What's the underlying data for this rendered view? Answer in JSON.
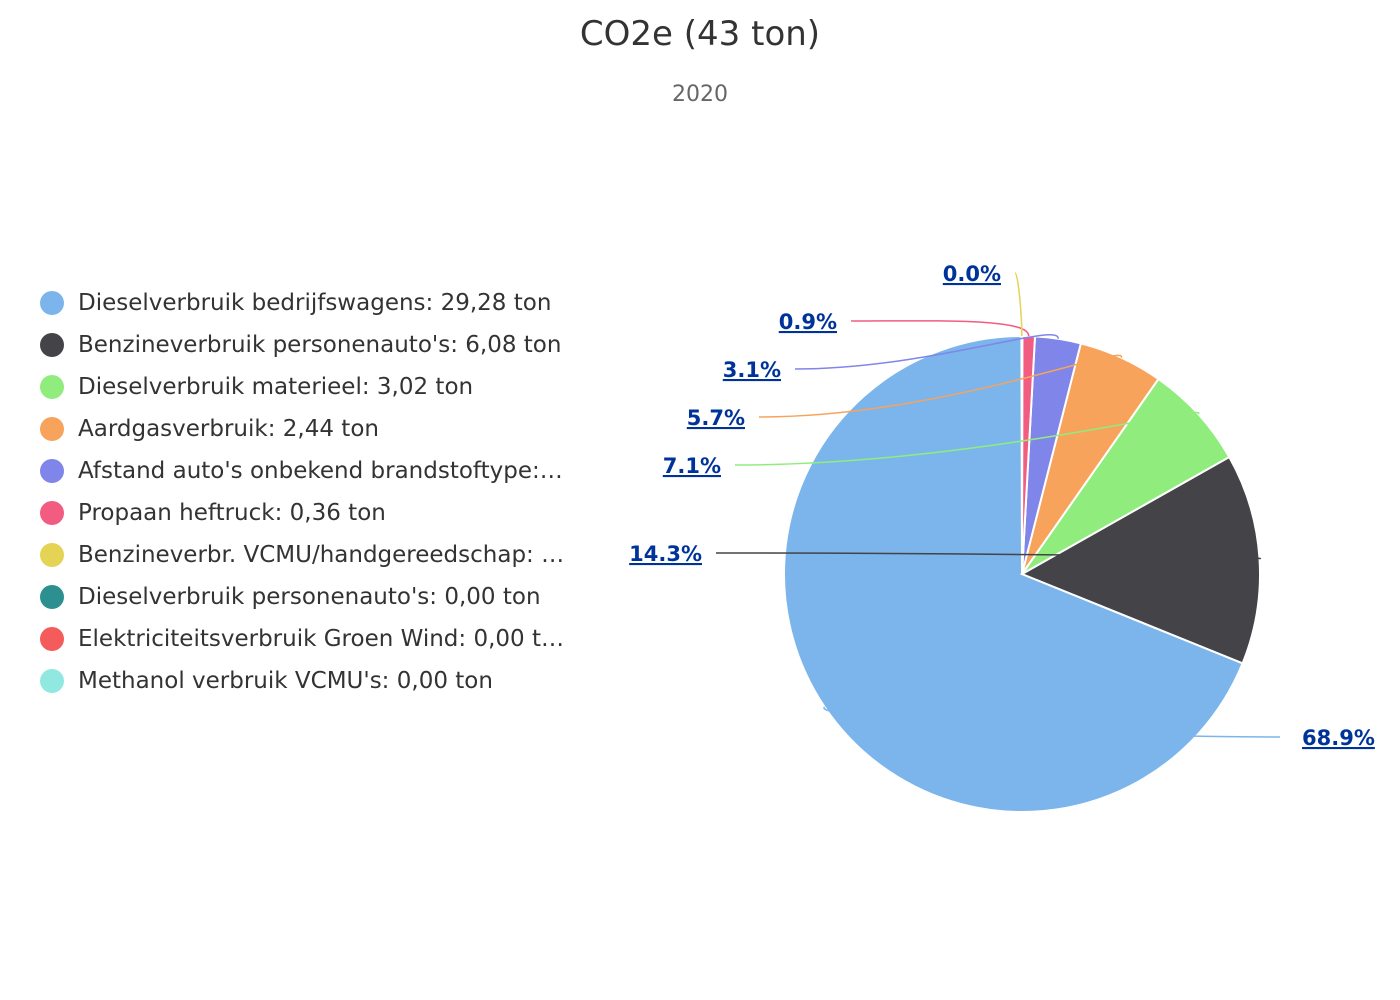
{
  "chart_data": {
    "type": "pie",
    "title": "CO2e (43 ton)",
    "subtitle": "2020",
    "legend_position": "left",
    "slices": [
      {
        "name": "Dieselverbruik bedrijfswagens: 29,28 ton",
        "value": 29.28,
        "percent_label": "68.9%",
        "color": "#7cb5ec"
      },
      {
        "name": "Benzineverbruik personenauto's: 6,08 ton",
        "value": 6.08,
        "percent_label": "14.3%",
        "color": "#434348"
      },
      {
        "name": "Dieselverbruik materieel: 3,02 ton",
        "value": 3.02,
        "percent_label": "7.1%",
        "color": "#90ed7d"
      },
      {
        "name": "Aardgasverbruik: 2,44 ton",
        "value": 2.44,
        "percent_label": "5.7%",
        "color": "#f7a35c"
      },
      {
        "name": "Afstand auto's onbekend brandstoftype:…",
        "value": 1.32,
        "percent_label": "3.1%",
        "color": "#8085e9"
      },
      {
        "name": "Propaan heftruck: 0,36 ton",
        "value": 0.36,
        "percent_label": "0.9%",
        "color": "#f15c80"
      },
      {
        "name": "Benzineverbr. VCMU/handgereedschap: …",
        "value": 0.01,
        "percent_label": "0.0%",
        "color": "#e4d354"
      },
      {
        "name": "Dieselverbruik personenauto's: 0,00 ton",
        "value": 0,
        "percent_label": "",
        "color": "#2b908f"
      },
      {
        "name": "Elektriciteitsverbruik Groen Wind: 0,00 t…",
        "value": 0,
        "percent_label": "",
        "color": "#f45b5b"
      },
      {
        "name": "Methanol verbruik VCMU's: 0,00 ton",
        "value": 0,
        "percent_label": "",
        "color": "#91e8e1"
      }
    ]
  }
}
